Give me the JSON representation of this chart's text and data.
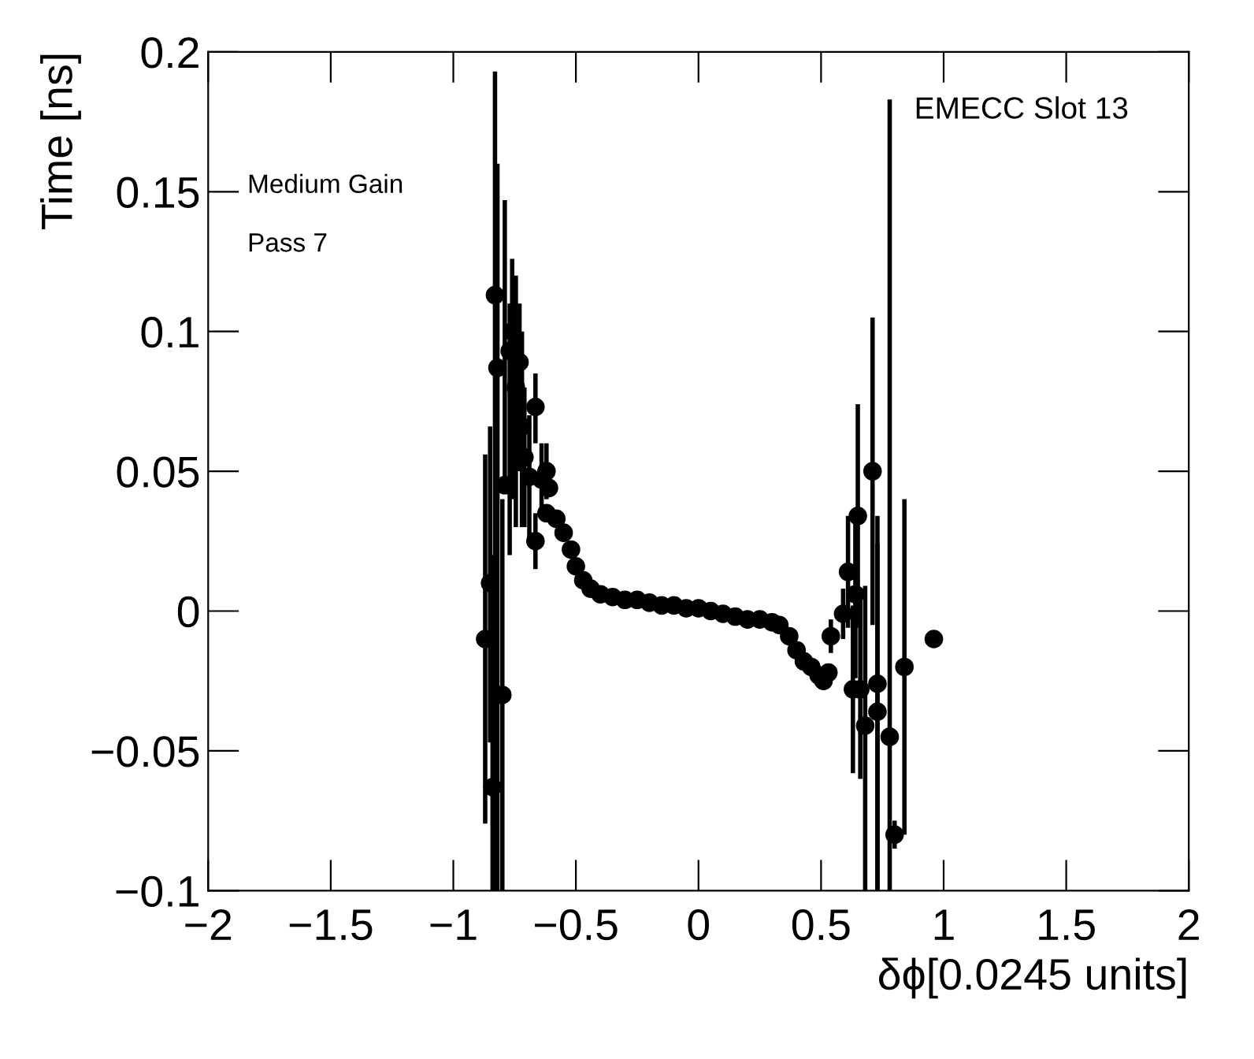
{
  "chart_data": {
    "type": "scatter",
    "xlabel": "δϕ[0.0245 units]",
    "ylabel": "Time [ns]",
    "annotations": [
      "EMECC Slot 13",
      "Medium Gain",
      "Pass 7"
    ],
    "marker": "circle",
    "grid": false,
    "xlim": [
      -2,
      2
    ],
    "ylim": [
      -0.1,
      0.2
    ],
    "xticks": [
      {
        "value": -2,
        "label": "−2"
      },
      {
        "value": -1.5,
        "label": "−1.5"
      },
      {
        "value": -1,
        "label": "−1"
      },
      {
        "value": -0.5,
        "label": "−0.5"
      },
      0,
      0.5,
      1,
      1.5,
      2
    ],
    "yticks": [
      {
        "value": -0.1,
        "label": "−0.1"
      },
      {
        "value": -0.05,
        "label": "−0.05"
      },
      0,
      0.05,
      0.1,
      0.15,
      0.2
    ],
    "series": [
      {
        "color": "#000000",
        "x": [
          -0.87,
          -0.85,
          -0.84,
          -0.83,
          -0.82,
          -0.8,
          -0.79,
          -0.77,
          -0.76,
          -0.745,
          -0.73,
          -0.72,
          -0.71,
          -0.69,
          -0.665,
          -0.665,
          -0.64,
          -0.62,
          -0.61,
          -0.62,
          -0.58,
          -0.55,
          -0.52,
          -0.5,
          -0.47,
          -0.44,
          -0.4,
          -0.35,
          -0.3,
          -0.25,
          -0.2,
          -0.15,
          -0.1,
          -0.05,
          0,
          0.05,
          0.1,
          0.15,
          0.2,
          0.25,
          0.3,
          0.33,
          0.37,
          0.4,
          0.43,
          0.46,
          0.49,
          0.51,
          0.53,
          0.54,
          0.59,
          0.61,
          0.64,
          0.63,
          0.65,
          0.66,
          0.68,
          0.71,
          0.73,
          0.73,
          0.78,
          0.8,
          0.84,
          0.96
        ],
        "values": [
          -0.01,
          0.01,
          -0.063,
          0.113,
          0.087,
          -0.03,
          0.045,
          0.093,
          0.1,
          0.08,
          0.089,
          0.066,
          0.055,
          0.048,
          0.073,
          0.025,
          0.047,
          0.05,
          0.044,
          0.035,
          0.033,
          0.028,
          0.022,
          0.016,
          0.011,
          0.008,
          0.006,
          0.005,
          0.004,
          0.004,
          0.003,
          0.002,
          0.002,
          0.001,
          0.001,
          0.0,
          -0.001,
          -0.002,
          -0.003,
          -0.003,
          -0.004,
          -0.005,
          -0.009,
          -0.014,
          -0.018,
          -0.02,
          -0.023,
          -0.025,
          -0.022,
          -0.009,
          -0.001,
          0.014,
          0.006,
          -0.028,
          0.034,
          -0.028,
          -0.041,
          0.05,
          -0.026,
          -0.036,
          -0.045,
          -0.08,
          -0.02,
          -0.01
        ],
        "errors": [
          [
            -0.076,
            0.056
          ],
          [
            -0.047,
            0.066
          ],
          [
            -0.1,
            0.02
          ],
          [
            -0.1,
            0.193
          ],
          [
            -0.1,
            0.16
          ],
          [
            -0.1,
            0.04
          ],
          [
            0.045,
            0.147
          ],
          [
            0.02,
            0.11
          ],
          [
            0.04,
            0.126
          ],
          [
            0.03,
            0.12
          ],
          [
            0.05,
            0.11
          ],
          [
            0.03,
            0.1
          ],
          [
            0.03,
            0.08
          ],
          [
            0.025,
            0.07
          ],
          [
            0.06,
            0.085
          ],
          [
            0.015,
            0.035
          ],
          [
            0.035,
            0.06
          ],
          [
            0.04,
            0.06
          ],
          null,
          null,
          null,
          null,
          null,
          null,
          null,
          null,
          null,
          null,
          null,
          null,
          null,
          null,
          null,
          null,
          null,
          null,
          null,
          null,
          null,
          null,
          null,
          null,
          null,
          null,
          null,
          null,
          null,
          null,
          null,
          [
            -0.015,
            -0.003
          ],
          [
            -0.01,
            0.008
          ],
          [
            -0.006,
            0.034
          ],
          [
            -0.024,
            0.036
          ],
          [
            -0.058,
            0.002
          ],
          [
            -0.006,
            0.074
          ],
          [
            -0.06,
            0.004
          ],
          [
            -0.1,
            0.009
          ],
          [
            -0.005,
            0.105
          ],
          [
            -0.1,
            0.034
          ],
          [
            -0.1,
            0.024
          ],
          [
            -0.1,
            0.183
          ],
          [
            -0.085,
            -0.075
          ],
          [
            -0.08,
            0.04
          ],
          null
        ]
      }
    ]
  }
}
